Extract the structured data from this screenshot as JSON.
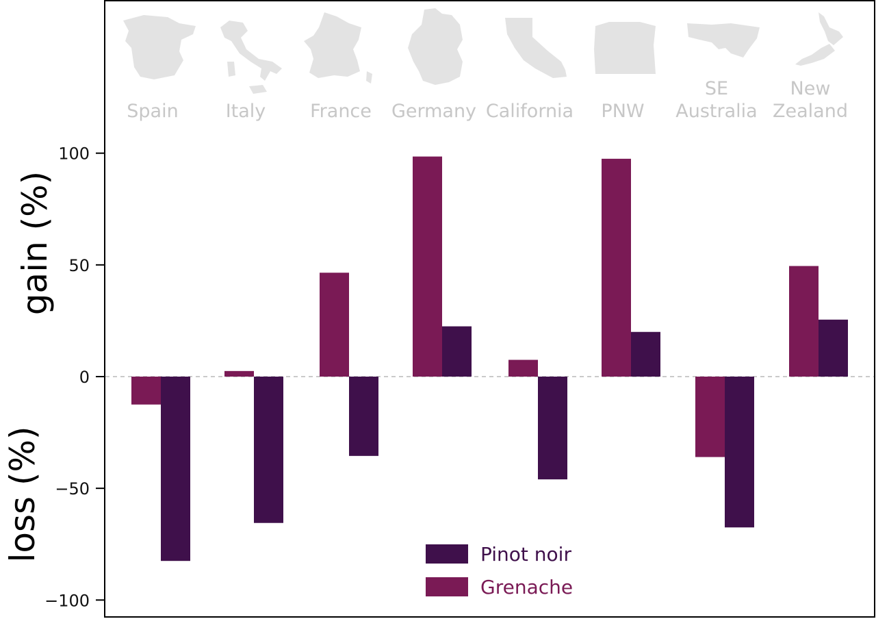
{
  "chart_data": {
    "type": "bar",
    "categories": [
      {
        "lines": [
          "Spain"
        ],
        "map_icon": "spain-map-icon"
      },
      {
        "lines": [
          "Italy"
        ],
        "map_icon": "italy-map-icon"
      },
      {
        "lines": [
          "France"
        ],
        "map_icon": "france-map-icon"
      },
      {
        "lines": [
          "Germany"
        ],
        "map_icon": "germany-map-icon"
      },
      {
        "lines": [
          "California"
        ],
        "map_icon": "california-map-icon"
      },
      {
        "lines": [
          "PNW"
        ],
        "map_icon": "pnw-map-icon"
      },
      {
        "lines": [
          "SE",
          "Australia"
        ],
        "map_icon": "se-australia-map-icon"
      },
      {
        "lines": [
          "New",
          "Zealand"
        ],
        "map_icon": "new-zealand-map-icon"
      }
    ],
    "series": [
      {
        "name": "Grenache",
        "color": "#7a1a55",
        "values": [
          -12.5,
          2.5,
          46.5,
          98.5,
          7.5,
          97.5,
          -36,
          49.5
        ]
      },
      {
        "name": "Pinot noir",
        "color": "#3f104b",
        "values": [
          -82.5,
          -65.5,
          -35.5,
          22.5,
          -46,
          20,
          -67.5,
          25.5
        ]
      }
    ],
    "ylabel_positive": "gain (%)",
    "ylabel_negative": "loss (%)",
    "ylim": [
      -100,
      100
    ],
    "yticks": [
      100,
      50,
      0,
      -50,
      -100
    ],
    "ytick_labels": [
      "100",
      "50",
      "0",
      "−50",
      "−100"
    ],
    "zero_line": "dashed",
    "legend_position": "bottom-center",
    "legend_order": [
      "Pinot noir",
      "Grenache"
    ],
    "category_label_color": "#c7c7c7",
    "map_icon_color": "#e3e3e3"
  }
}
